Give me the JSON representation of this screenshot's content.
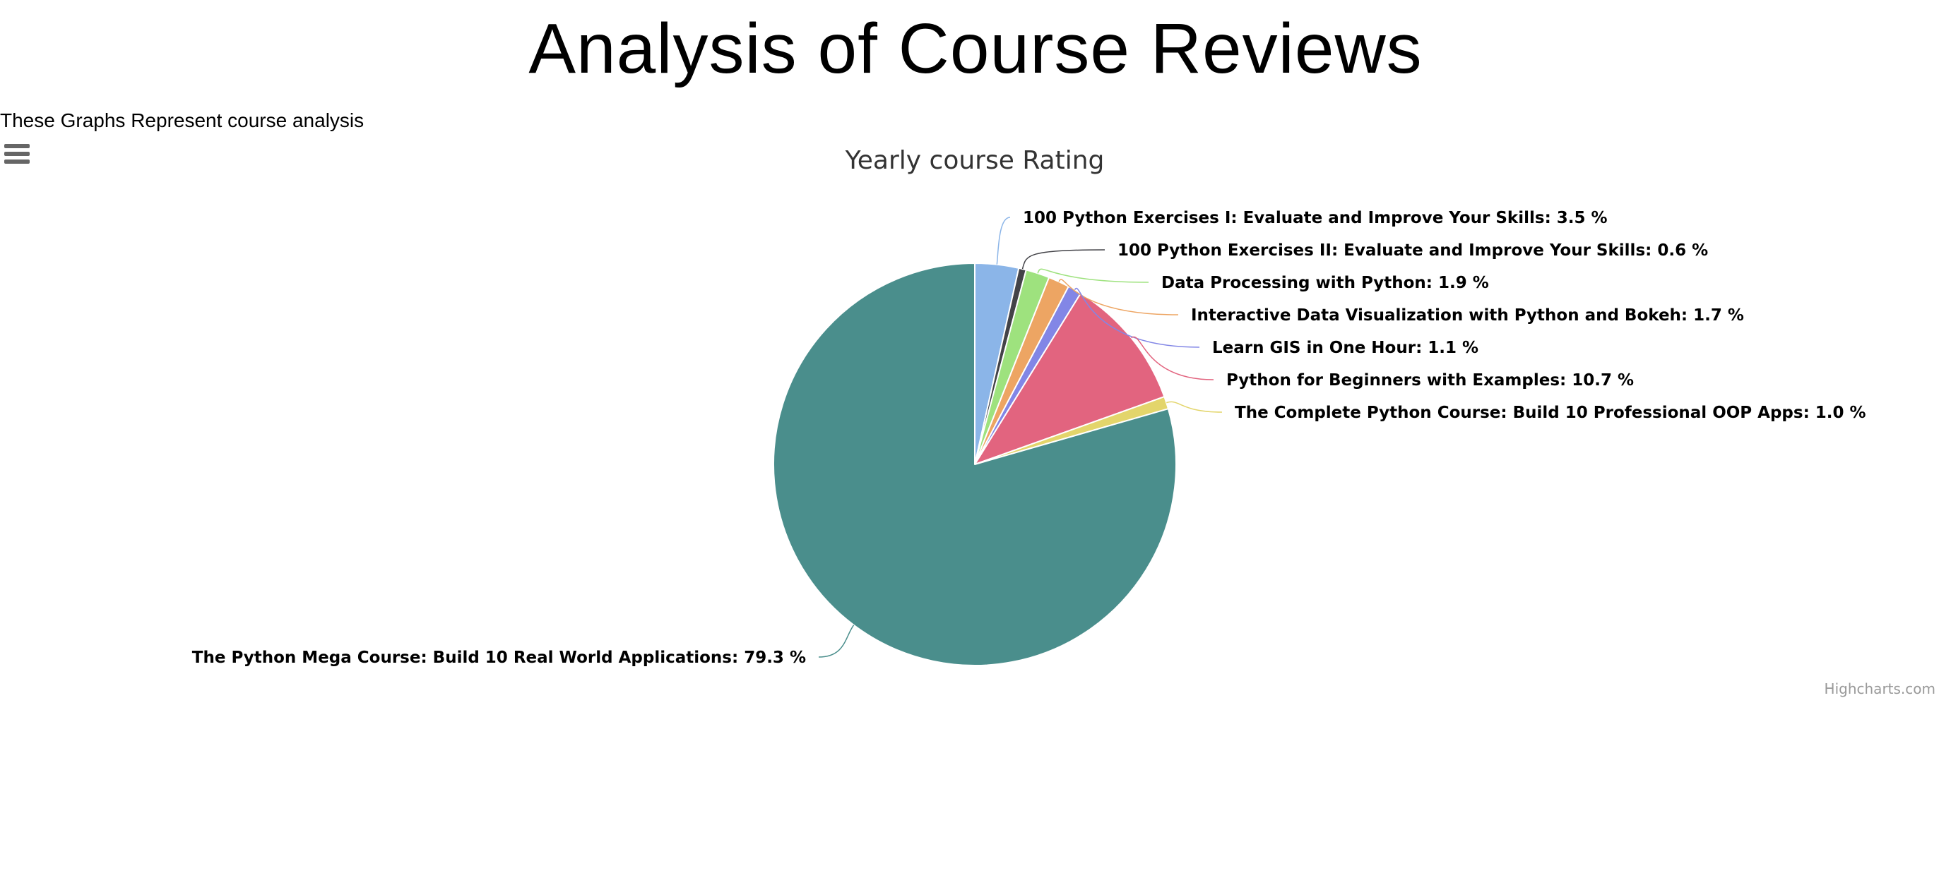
{
  "page": {
    "title": "Analysis of Course Reviews",
    "subtitle": "These Graphs Represent course analysis"
  },
  "chart": {
    "menu_icon": "hamburger-menu-icon",
    "credits": "Highcharts.com"
  },
  "chart_data": {
    "type": "pie",
    "title": "Yearly course Rating",
    "value_suffix": " %",
    "slices": [
      {
        "name": "100 Python Exercises I: Evaluate and Improve Your Skills",
        "value": 3.5,
        "color": "#8bb5e8"
      },
      {
        "name": "100 Python Exercises II: Evaluate and Improve Your Skills",
        "value": 0.6,
        "color": "#434348"
      },
      {
        "name": "Data Processing with Python",
        "value": 1.9,
        "color": "#9ee27e"
      },
      {
        "name": "Interactive Data Visualization with Python and Bokeh",
        "value": 1.7,
        "color": "#eda563"
      },
      {
        "name": "Learn GIS in One Hour",
        "value": 1.1,
        "color": "#8286e6"
      },
      {
        "name": "Python for Beginners with Examples",
        "value": 10.7,
        "color": "#e2647f"
      },
      {
        "name": "The Complete Python Course: Build 10 Professional OOP Apps",
        "value": 1.0,
        "color": "#e3d56b"
      },
      {
        "name": "The Python Mega Course: Build 10 Real World Applications",
        "value": 79.3,
        "color": "#4a8e8c"
      }
    ]
  }
}
